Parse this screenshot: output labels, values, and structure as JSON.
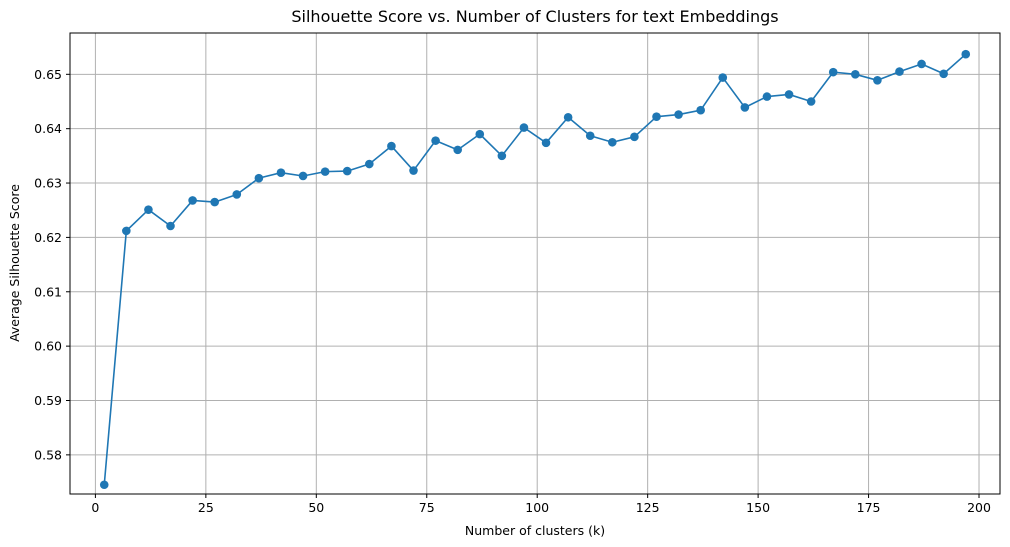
{
  "chart_data": {
    "type": "line",
    "title": "Silhouette Score vs. Number of Clusters for text Embeddings",
    "xlabel": "Number of clusters (k)",
    "ylabel": "Average Silhouette Score",
    "xlim": [
      -5.75,
      204.75
    ],
    "ylim": [
      0.5728,
      0.6576
    ],
    "xticks": [
      0,
      25,
      50,
      75,
      100,
      125,
      150,
      175,
      200
    ],
    "xtick_labels": [
      "0",
      "25",
      "50",
      "75",
      "100",
      "125",
      "150",
      "175",
      "200"
    ],
    "yticks": [
      0.58,
      0.59,
      0.6,
      0.61,
      0.62,
      0.63,
      0.64,
      0.65
    ],
    "ytick_labels": [
      "0.58",
      "0.59",
      "0.60",
      "0.61",
      "0.62",
      "0.63",
      "0.64",
      "0.65"
    ],
    "grid": true,
    "color": "#1f77b4",
    "marker": "circle",
    "series": [
      {
        "x": [
          2,
          7,
          12,
          17,
          22,
          27,
          32,
          37,
          42,
          47,
          52,
          57,
          62,
          67,
          72,
          77,
          82,
          87,
          92,
          97,
          102,
          107,
          112,
          117,
          122,
          127,
          132,
          137,
          142,
          147,
          152,
          157,
          162,
          167,
          172,
          177,
          182,
          187,
          192,
          197
        ],
        "y": [
          0.5745,
          0.6212,
          0.6251,
          0.6221,
          0.6268,
          0.6265,
          0.6279,
          0.6309,
          0.6319,
          0.6313,
          0.6321,
          0.6322,
          0.6335,
          0.6368,
          0.6323,
          0.6378,
          0.6361,
          0.639,
          0.635,
          0.6402,
          0.6374,
          0.6421,
          0.6387,
          0.6375,
          0.6385,
          0.6422,
          0.6426,
          0.6434,
          0.6494,
          0.6439,
          0.6459,
          0.6463,
          0.645,
          0.6504,
          0.65,
          0.6489,
          0.6505,
          0.6519,
          0.6501,
          0.6537
        ]
      }
    ]
  }
}
